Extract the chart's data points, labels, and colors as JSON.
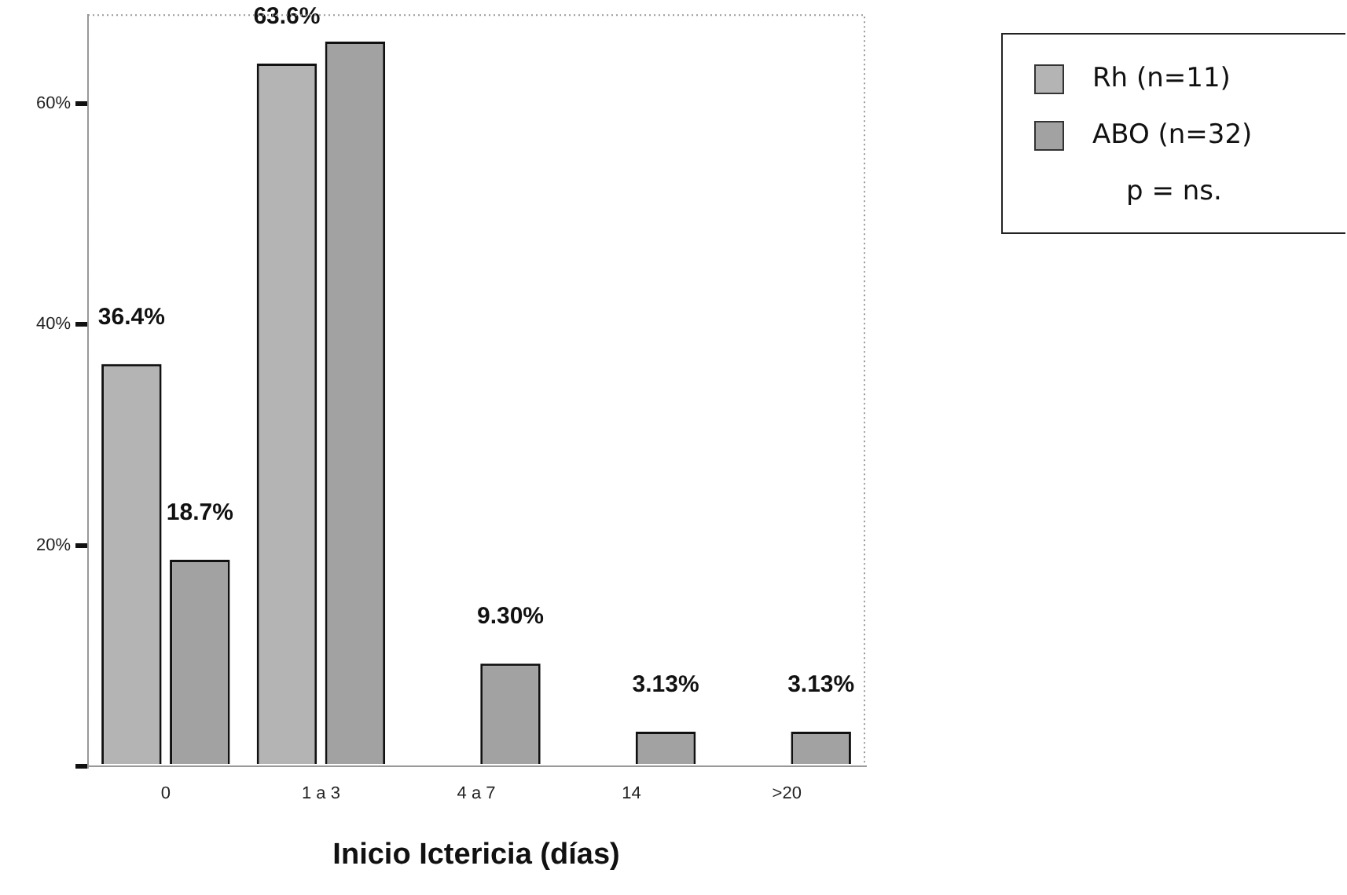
{
  "chart_data": {
    "type": "bar",
    "xlabel": "Inicio Ictericia (días)",
    "categories": [
      "0",
      "1 a 3",
      "4 a 7",
      "14",
      ">20"
    ],
    "series": [
      {
        "name": "Rh (n=11)",
        "color": "#b4b4b4",
        "values": [
          36.4,
          63.6,
          null,
          null,
          null
        ],
        "value_labels": [
          "36.4%",
          "63.6%",
          null,
          null,
          null
        ]
      },
      {
        "name": "ABO (n=32)",
        "color": "#a2a2a2",
        "values": [
          18.7,
          65.6,
          9.3,
          3.13,
          3.13
        ],
        "value_labels": [
          "18.7%",
          null,
          "9.30%",
          "3.13%",
          "3.13%"
        ]
      }
    ],
    "ylim": [
      0,
      68
    ],
    "yticks": [
      {
        "value": 0,
        "label": null
      },
      {
        "value": 20,
        "label": "20%"
      },
      {
        "value": 40,
        "label": "40%"
      },
      {
        "value": 60,
        "label": "60%"
      }
    ],
    "grid": false,
    "legend": "right",
    "annotations": [
      "p = ns."
    ]
  }
}
